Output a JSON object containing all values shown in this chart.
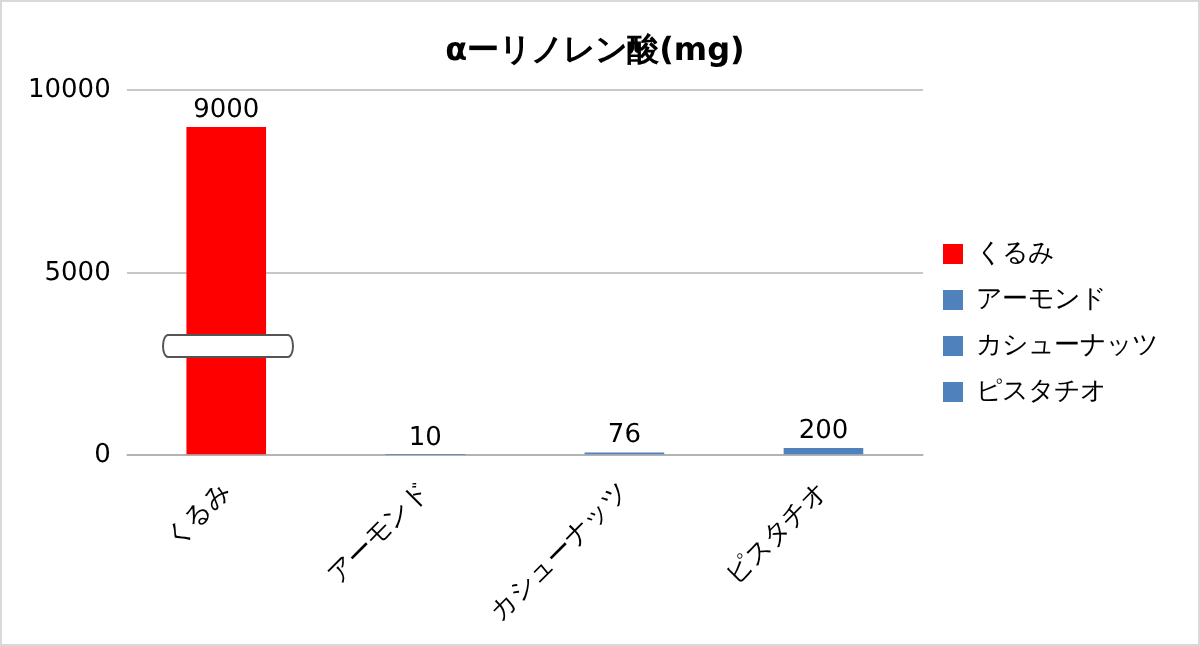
{
  "chart_data": {
    "type": "bar",
    "title": "αーリノレン酸(mg)",
    "categories": [
      "くるみ",
      "アーモンド",
      "カシューナッツ",
      "ピスタチオ"
    ],
    "series": [
      {
        "name": "くるみ",
        "color": "#ff0000",
        "values": [
          9000,
          null,
          null,
          null
        ]
      },
      {
        "name": "アーモンド",
        "color": "#4f81bd",
        "values": [
          null,
          10,
          null,
          null
        ]
      },
      {
        "name": "カシューナッツ",
        "color": "#4f81bd",
        "values": [
          null,
          null,
          76,
          null
        ]
      },
      {
        "name": "ピスタチオ",
        "color": "#4f81bd",
        "values": [
          null,
          null,
          null,
          200
        ]
      }
    ],
    "ylim": [
      0,
      10000
    ],
    "yticks": [
      0,
      5000,
      10000
    ],
    "grid": "y",
    "data_labels": true,
    "legend": "right"
  }
}
